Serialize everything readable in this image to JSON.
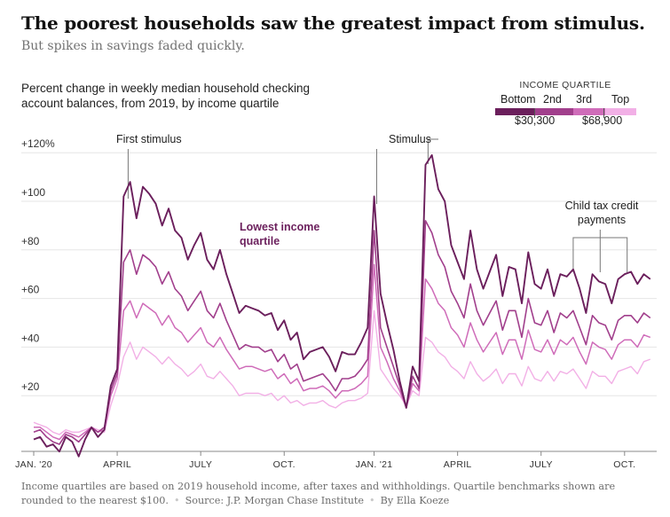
{
  "title": "The poorest households saw the greatest impact from stimulus.",
  "subtitle": "But spikes in savings faded quickly.",
  "description": "Percent change in weekly median household checking account balances, from 2019, by income quartile",
  "legend": {
    "title": "INCOME QUARTILE",
    "labels": [
      "Bottom",
      "2nd",
      "3rd",
      "Top"
    ],
    "benchmarks": [
      "$30,300",
      "$68,900"
    ]
  },
  "annotations": {
    "first_stimulus": "First stimulus",
    "stimulus": "Stimulus",
    "lowest_line1": "Lowest income",
    "lowest_line2": "quartile",
    "child_line1": "Child tax credit",
    "child_line2": "payments"
  },
  "footer": {
    "note": "Income quartiles are based on 2019 household income, after taxes and withholdings. Quartile benchmarks shown are rounded to the nearest $100.",
    "source": "Source: J.P. Morgan Chase Institute",
    "byline": "By Ella Koeze"
  },
  "chart_data": {
    "type": "line",
    "title": "Percent change in weekly median household checking account balances, from 2019, by income quartile",
    "xlabel": "",
    "ylabel": "",
    "y_ticks": [
      "+120%",
      "+100",
      "+80",
      "+60",
      "+40",
      "+20"
    ],
    "y_tick_values": [
      120,
      100,
      80,
      60,
      40,
      20
    ],
    "x_ticks": [
      "JAN. '20",
      "APRIL",
      "JULY",
      "OCT.",
      "JAN. '21",
      "APRIL",
      "JULY",
      "OCT."
    ],
    "x_tick_weeks": [
      0,
      13,
      26,
      39,
      53,
      66,
      79,
      92
    ],
    "ylim": [
      -2,
      125
    ],
    "xlim": [
      0,
      97
    ],
    "grid": true,
    "x_unit": "weeks since the first week of January 2020",
    "series": [
      {
        "name": "Bottom",
        "color": "#6b1f5c",
        "width": 1.9,
        "values": [
          2,
          3,
          -1,
          0,
          -3,
          3,
          1,
          -5,
          2,
          7,
          3,
          6,
          24,
          31,
          102,
          108,
          93,
          106,
          103,
          99,
          90,
          97,
          88,
          85,
          76,
          82,
          87,
          76,
          72,
          80,
          70,
          62,
          54,
          57,
          56,
          55,
          53,
          54,
          47,
          51,
          43,
          46,
          35,
          38,
          39,
          40,
          36,
          30,
          38,
          37,
          37,
          42,
          48,
          102,
          62,
          50,
          39,
          26,
          15,
          32,
          26,
          115,
          119,
          105,
          100,
          82,
          75,
          68,
          88,
          72,
          64,
          71,
          78,
          61,
          73,
          72,
          58,
          79,
          66,
          64,
          72,
          61,
          70,
          69,
          72,
          64,
          54,
          70,
          67,
          66,
          58,
          68,
          70,
          71,
          66,
          70,
          68
        ]
      },
      {
        "name": "2nd",
        "color": "#a13f8c",
        "width": 1.6,
        "values": [
          5,
          6,
          3,
          1,
          0,
          4,
          3,
          1,
          4,
          7,
          5,
          7,
          22,
          29,
          75,
          80,
          70,
          78,
          76,
          73,
          66,
          71,
          64,
          61,
          55,
          59,
          63,
          55,
          52,
          58,
          51,
          45,
          39,
          41,
          40,
          40,
          38,
          39,
          34,
          37,
          31,
          33,
          26,
          27,
          28,
          29,
          26,
          22,
          27,
          27,
          28,
          31,
          35,
          88,
          48,
          40,
          32,
          24,
          15,
          28,
          23,
          92,
          87,
          78,
          73,
          63,
          58,
          52,
          66,
          55,
          49,
          54,
          59,
          47,
          55,
          55,
          44,
          60,
          50,
          49,
          55,
          46,
          54,
          52,
          55,
          48,
          41,
          53,
          50,
          49,
          43,
          51,
          53,
          53,
          50,
          54,
          52
        ]
      },
      {
        "name": "3rd",
        "color": "#cf6cb9",
        "width": 1.5,
        "values": [
          7,
          7,
          5,
          3,
          2,
          5,
          4,
          3,
          5,
          7,
          5,
          6,
          20,
          27,
          55,
          59,
          52,
          58,
          56,
          54,
          49,
          53,
          48,
          46,
          42,
          45,
          48,
          42,
          40,
          44,
          39,
          35,
          31,
          32,
          32,
          31,
          30,
          31,
          27,
          29,
          25,
          27,
          22,
          23,
          23,
          24,
          22,
          19,
          22,
          22,
          23,
          25,
          28,
          74,
          40,
          34,
          27,
          22,
          15,
          25,
          22,
          68,
          64,
          58,
          55,
          48,
          45,
          40,
          50,
          43,
          38,
          42,
          46,
          37,
          43,
          43,
          35,
          47,
          39,
          38,
          43,
          37,
          43,
          41,
          44,
          38,
          33,
          42,
          40,
          39,
          35,
          41,
          43,
          43,
          40,
          45,
          44
        ]
      },
      {
        "name": "Top",
        "color": "#f2b0e6",
        "width": 1.4,
        "values": [
          9,
          8,
          7,
          5,
          4,
          6,
          5,
          5,
          6,
          7,
          6,
          5,
          16,
          24,
          36,
          42,
          35,
          40,
          38,
          36,
          33,
          36,
          33,
          31,
          28,
          30,
          33,
          28,
          27,
          30,
          27,
          24,
          20,
          21,
          21,
          21,
          20,
          21,
          18,
          20,
          17,
          18,
          16,
          17,
          17,
          18,
          16,
          15,
          17,
          18,
          18,
          19,
          21,
          55,
          31,
          27,
          23,
          20,
          16,
          22,
          20,
          44,
          42,
          38,
          36,
          32,
          30,
          27,
          34,
          29,
          26,
          28,
          31,
          25,
          29,
          29,
          24,
          32,
          27,
          26,
          30,
          26,
          30,
          29,
          31,
          27,
          23,
          30,
          28,
          28,
          25,
          30,
          31,
          32,
          29,
          34,
          35
        ]
      }
    ]
  }
}
